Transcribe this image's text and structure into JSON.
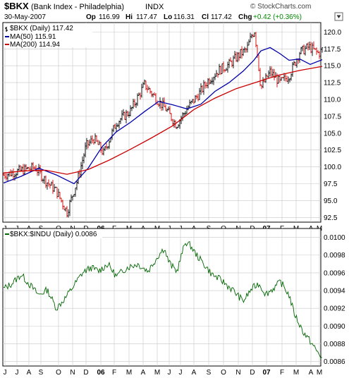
{
  "header": {
    "symbol": "$BKX",
    "name": "(Bank Index - Philadelphia)",
    "exchange": "INDX",
    "date": "30-May-2007",
    "op_label": "Op",
    "op": "116.99",
    "hi_label": "Hi",
    "hi": "117.47",
    "lo_label": "Lo",
    "lo": "116.31",
    "cl_label": "Cl",
    "cl": "117.42",
    "chg_label": "Chg",
    "chg": "+0.42 (+0.36%)",
    "watermark": "© StockCharts.com"
  },
  "colors": {
    "price": "#000000",
    "price_up": "#cc0000",
    "ma50": "#0000aa",
    "ma200": "#cc0000",
    "ratio": "#006600",
    "grid": "#c8c8c8",
    "chg": "#008800"
  },
  "chart_data": [
    {
      "type": "ohlc",
      "legend_main": "$BKX (Daily) 117.42",
      "legend_ma50": "MA(50) 115.91",
      "legend_ma200": "MA(200) 114.94",
      "legend_placement": "top-left",
      "grid": true,
      "ylim": [
        91.8,
        121.4
      ],
      "y_ticks": [
        "120.0",
        "117.5",
        "115.0",
        "112.5",
        "110.0",
        "107.5",
        "105.0",
        "102.5",
        "100.0",
        "97.5",
        "95.0",
        "92.5"
      ],
      "x_ticks": [
        "J",
        "J",
        "A",
        "S",
        "O",
        "N",
        "D",
        "06",
        "F",
        "M",
        "A",
        "M",
        "J",
        "J",
        "A",
        "S",
        "O",
        "N",
        "D",
        "07",
        "F",
        "M",
        "A",
        "M"
      ],
      "x_ticks_bold": [
        "06",
        "07"
      ],
      "series": [
        {
          "name": "$BKX",
          "x": [
            0,
            15,
            30,
            45,
            60,
            75,
            90,
            105,
            117,
            128,
            142,
            160,
            180,
            200,
            215,
            230,
            245,
            262,
            275,
            290,
            305,
            320,
            335,
            345,
            352,
            356,
            360,
            365,
            378,
            392,
            405,
            420,
            433,
            447,
            452
          ],
          "values": [
            98.8,
            99.2,
            99.6,
            99.9,
            97.9,
            96.4,
            93.3,
            98.1,
            103.1,
            104.2,
            102.0,
            106.6,
            108.3,
            112.2,
            110.3,
            108.6,
            106.2,
            108.9,
            110.5,
            112.8,
            114.3,
            115.2,
            116.7,
            117.4,
            119.5,
            120.2,
            116.8,
            111.7,
            114.1,
            112.5,
            113.5,
            117.0,
            117.8,
            116.8,
            117.4
          ]
        },
        {
          "name": "MA(50)",
          "x": [
            0,
            25,
            50,
            75,
            100,
            120,
            140,
            160,
            180,
            200,
            220,
            240,
            260,
            280,
            300,
            320,
            340,
            355,
            365,
            378,
            392,
            405,
            420,
            435,
            452
          ],
          "values": [
            97.6,
            98.6,
            99.8,
            98.8,
            97.5,
            99.8,
            103.0,
            105.2,
            106.6,
            108.2,
            109.7,
            109.2,
            108.6,
            109.3,
            111.2,
            112.5,
            114.2,
            115.8,
            117.2,
            117.7,
            116.8,
            115.8,
            116.0,
            115.2,
            115.9
          ]
        },
        {
          "name": "MA(200)",
          "x": [
            0,
            30,
            60,
            90,
            120,
            150,
            180,
            210,
            240,
            270,
            300,
            330,
            360,
            390,
            420,
            452
          ],
          "values": [
            99.1,
            99.4,
            99.5,
            98.9,
            99.6,
            101.0,
            102.6,
            104.3,
            106.1,
            108.5,
            110.2,
            111.6,
            112.6,
            113.6,
            114.3,
            114.9
          ]
        }
      ]
    },
    {
      "type": "line",
      "legend_main": "$BKX:$INDU (Daily) 0.0086",
      "legend_placement": "top-left",
      "grid": true,
      "ylim": [
        0.00855,
        0.0101
      ],
      "y_ticks": [
        "0.0100",
        "0.0098",
        "0.0096",
        "0.0094",
        "0.0092",
        "0.0090",
        "0.0088",
        "0.0086"
      ],
      "x_ticks": [
        "J",
        "J",
        "A",
        "S",
        "O",
        "N",
        "D",
        "06",
        "F",
        "M",
        "A",
        "M",
        "J",
        "J",
        "A",
        "S",
        "O",
        "N",
        "D",
        "07",
        "F",
        "M",
        "A",
        "M"
      ],
      "x_ticks_bold": [
        "06",
        "07"
      ],
      "series": [
        {
          "name": "$BKX:$INDU",
          "x": [
            0,
            12,
            25,
            38,
            50,
            62,
            75,
            88,
            100,
            112,
            124,
            135,
            148,
            160,
            175,
            190,
            205,
            220,
            228,
            233,
            238,
            246,
            258,
            266,
            272,
            282,
            296,
            310,
            326,
            340,
            352,
            362,
            372,
            382,
            393,
            405,
            412,
            418,
            424,
            430,
            436,
            444,
            452
          ],
          "values": [
            0.00942,
            0.00948,
            0.00958,
            0.00946,
            0.00935,
            0.00941,
            0.0092,
            0.00932,
            0.00946,
            0.0096,
            0.00966,
            0.00962,
            0.0097,
            0.00956,
            0.00966,
            0.0097,
            0.00962,
            0.0098,
            0.00988,
            0.00975,
            0.00968,
            0.00962,
            0.00995,
            0.0099,
            0.00982,
            0.00972,
            0.00958,
            0.00951,
            0.0094,
            0.00928,
            0.00942,
            0.00948,
            0.00936,
            0.00942,
            0.0095,
            0.00935,
            0.00915,
            0.00905,
            0.00895,
            0.00888,
            0.00882,
            0.00872,
            0.00864
          ]
        }
      ]
    }
  ]
}
